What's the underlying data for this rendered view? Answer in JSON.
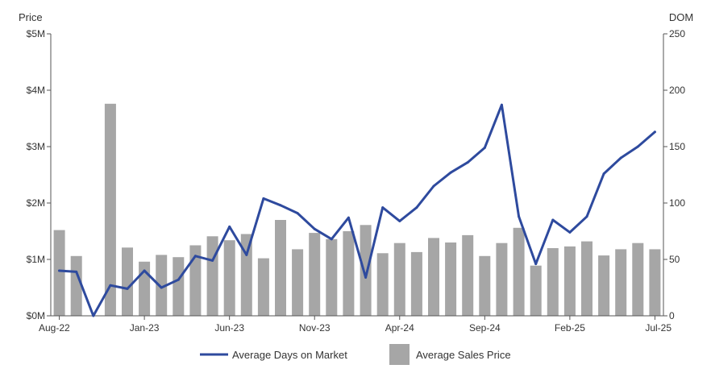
{
  "chart_data": {
    "type": "bar+line",
    "left_axis": {
      "title": "Price",
      "ylim": [
        0,
        5000000
      ],
      "ticks": [
        {
          "value": 0,
          "label": "$0M"
        },
        {
          "value": 1000000,
          "label": "$1M"
        },
        {
          "value": 2000000,
          "label": "$2M"
        },
        {
          "value": 3000000,
          "label": "$3M"
        },
        {
          "value": 4000000,
          "label": "$4M"
        },
        {
          "value": 5000000,
          "label": "$5M"
        }
      ]
    },
    "right_axis": {
      "title": "DOM",
      "ylim": [
        0,
        250
      ],
      "ticks": [
        {
          "value": 0,
          "label": "0"
        },
        {
          "value": 50,
          "label": "50"
        },
        {
          "value": 100,
          "label": "100"
        },
        {
          "value": 150,
          "label": "150"
        },
        {
          "value": 200,
          "label": "200"
        },
        {
          "value": 250,
          "label": "250"
        }
      ]
    },
    "x": [
      "Aug-22",
      "Sep-22",
      "Oct-22",
      "Nov-22",
      "Dec-22",
      "Jan-23",
      "Feb-23",
      "Mar-23",
      "Apr-23",
      "May-23",
      "Jun-23",
      "Jul-23",
      "Aug-23",
      "Sep-23",
      "Oct-23",
      "Nov-23",
      "Dec-23",
      "Jan-24",
      "Feb-24",
      "Mar-24",
      "Apr-24",
      "May-24",
      "Jun-24",
      "Jul-24",
      "Aug-24",
      "Sep-24",
      "Oct-24",
      "Nov-24",
      "Dec-24",
      "Jan-25",
      "Feb-25",
      "Mar-25",
      "Apr-25",
      "May-25",
      "Jun-25",
      "Jul-25"
    ],
    "x_tick_labels": [
      {
        "index": 0,
        "label": "Aug-22"
      },
      {
        "index": 5,
        "label": "Jan-23"
      },
      {
        "index": 10,
        "label": "Jun-23"
      },
      {
        "index": 15,
        "label": "Nov-23"
      },
      {
        "index": 20,
        "label": "Apr-24"
      },
      {
        "index": 25,
        "label": "Sep-24"
      },
      {
        "index": 30,
        "label": "Feb-25"
      },
      {
        "index": 35,
        "label": "Jul-25"
      }
    ],
    "series": [
      {
        "name": "Average Sales Price",
        "type": "bar",
        "axis": "left",
        "color": "#a6a6a6",
        "values": [
          1520000,
          1060000,
          null,
          3760000,
          1210000,
          960000,
          1080000,
          1040000,
          1250000,
          1410000,
          1340000,
          1450000,
          1020000,
          1700000,
          1180000,
          1470000,
          1360000,
          1500000,
          1610000,
          1110000,
          1290000,
          1130000,
          1380000,
          1300000,
          1430000,
          1060000,
          1290000,
          1560000,
          890000,
          1200000,
          1230000,
          1320000,
          1070000,
          1180000,
          1290000,
          1180000
        ]
      },
      {
        "name": "Average Days on Market",
        "type": "line",
        "axis": "right",
        "color": "#2e4a9e",
        "values": [
          40,
          39,
          0,
          27,
          24,
          40,
          25,
          32,
          53,
          49,
          79,
          54,
          104,
          98,
          91,
          77,
          68,
          87,
          34,
          96,
          84,
          96,
          115,
          127,
          136,
          149,
          187,
          88,
          46,
          85,
          74,
          88,
          126,
          140,
          150,
          163
        ]
      }
    ],
    "legend": {
      "placement": "bottom-center",
      "items": [
        {
          "label": "Average Days on Market",
          "marker": "line",
          "color": "#2e4a9e"
        },
        {
          "label": "Average Sales Price",
          "marker": "box",
          "color": "#a6a6a6"
        }
      ]
    },
    "colors": {
      "axis": "#555555",
      "text": "#333333"
    }
  }
}
